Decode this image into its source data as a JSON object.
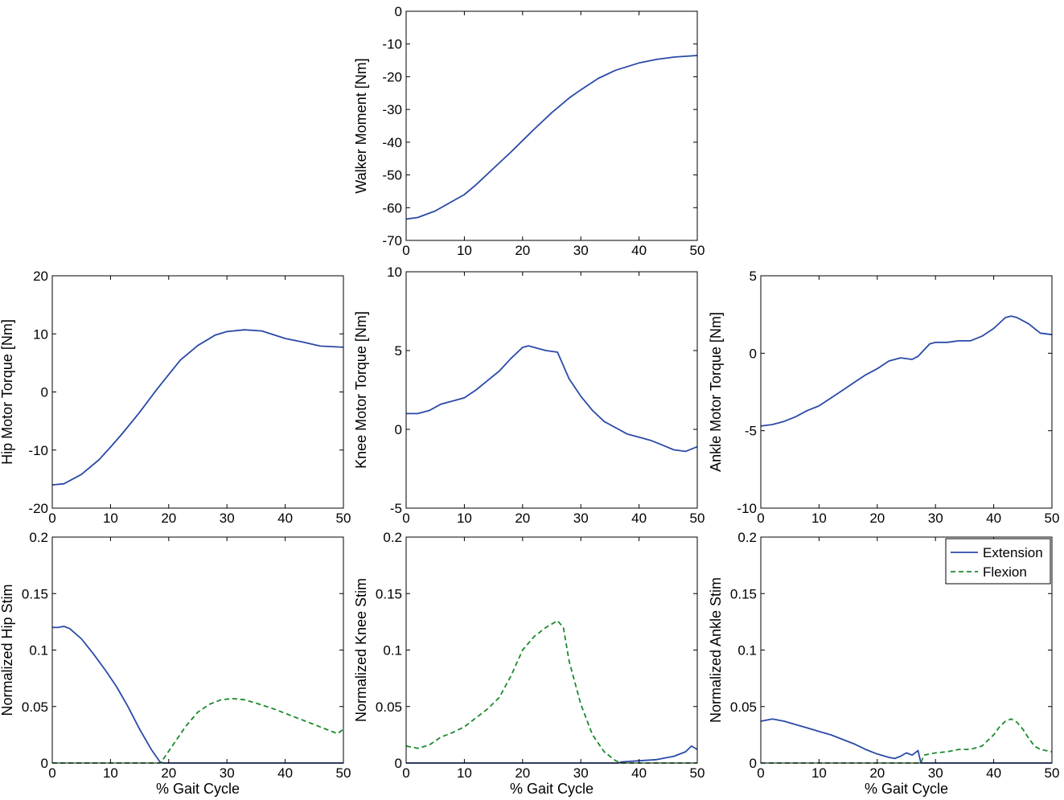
{
  "colors": {
    "extension": "#2a4aa8",
    "flexion": "#1a8a2a",
    "axis": "#000000"
  },
  "chart_data": [
    {
      "id": "walker",
      "type": "line",
      "ylabel": "Walker Moment [Nm]",
      "xlabel": "",
      "xlim": [
        0,
        50
      ],
      "ylim": [
        -70,
        0
      ],
      "xticks": [
        0,
        10,
        20,
        30,
        40,
        50
      ],
      "yticks": [
        -70,
        -60,
        -50,
        -40,
        -30,
        -20,
        -10,
        0
      ],
      "series": [
        {
          "style": "extension",
          "x": [
            0,
            2,
            5,
            8,
            10,
            12,
            15,
            18,
            20,
            22,
            25,
            28,
            30,
            33,
            36,
            40,
            43,
            46,
            50
          ],
          "y": [
            -63.5,
            -63,
            -61,
            -58,
            -56,
            -53,
            -48,
            -43,
            -39.5,
            -36,
            -31,
            -26.5,
            -24,
            -20.5,
            -18,
            -15.8,
            -14.7,
            -14,
            -13.5
          ]
        }
      ]
    },
    {
      "id": "hip-torque",
      "type": "line",
      "ylabel": "Hip Motor Torque [Nm]",
      "xlabel": "",
      "xlim": [
        0,
        50
      ],
      "ylim": [
        -20,
        20
      ],
      "xticks": [
        0,
        10,
        20,
        30,
        40,
        50
      ],
      "yticks": [
        -20,
        -10,
        0,
        10,
        20
      ],
      "series": [
        {
          "style": "extension",
          "x": [
            0,
            2,
            5,
            8,
            10,
            12,
            15,
            18,
            20,
            22,
            25,
            28,
            30,
            33,
            36,
            40,
            43,
            46,
            50
          ],
          "y": [
            -16,
            -15.8,
            -14.2,
            -11.7,
            -9.5,
            -7.2,
            -3.5,
            0.5,
            3,
            5.5,
            8,
            9.8,
            10.4,
            10.7,
            10.5,
            9.2,
            8.6,
            7.9,
            7.7
          ]
        }
      ]
    },
    {
      "id": "knee-torque",
      "type": "line",
      "ylabel": "Knee Motor Torque [Nm]",
      "xlabel": "",
      "xlim": [
        0,
        50
      ],
      "ylim": [
        -5,
        10
      ],
      "xticks": [
        0,
        10,
        20,
        30,
        40,
        50
      ],
      "yticks": [
        -5,
        0,
        5,
        10
      ],
      "series": [
        {
          "style": "extension",
          "x": [
            0,
            2,
            4,
            6,
            8,
            10,
            12,
            14,
            16,
            18,
            20,
            21,
            22,
            24,
            26,
            28,
            30,
            32,
            34,
            36,
            38,
            40,
            42,
            44,
            46,
            48,
            50
          ],
          "y": [
            1,
            1,
            1.2,
            1.6,
            1.8,
            2,
            2.5,
            3.1,
            3.7,
            4.5,
            5.2,
            5.3,
            5.2,
            5,
            4.9,
            3.2,
            2.1,
            1.2,
            0.5,
            0.1,
            -0.3,
            -0.5,
            -0.7,
            -1,
            -1.3,
            -1.4,
            -1.1
          ]
        }
      ]
    },
    {
      "id": "ankle-torque",
      "type": "line",
      "ylabel": "Ankle Motor Torque [Nm]",
      "xlabel": "",
      "xlim": [
        0,
        50
      ],
      "ylim": [
        -10,
        5
      ],
      "xticks": [
        0,
        10,
        20,
        30,
        40,
        50
      ],
      "yticks": [
        -10,
        -5,
        0,
        5
      ],
      "series": [
        {
          "style": "extension",
          "x": [
            0,
            2,
            4,
            6,
            8,
            10,
            12,
            14,
            16,
            18,
            20,
            22,
            24,
            26,
            27,
            28,
            29,
            30,
            32,
            34,
            36,
            38,
            40,
            42,
            43,
            44,
            46,
            48,
            50
          ],
          "y": [
            -4.7,
            -4.6,
            -4.4,
            -4.1,
            -3.7,
            -3.4,
            -2.9,
            -2.4,
            -1.9,
            -1.4,
            -1,
            -0.5,
            -0.3,
            -0.4,
            -0.2,
            0.2,
            0.6,
            0.7,
            0.7,
            0.8,
            0.8,
            1.1,
            1.6,
            2.3,
            2.4,
            2.3,
            1.9,
            1.3,
            1.2
          ]
        }
      ]
    },
    {
      "id": "hip-stim",
      "type": "line",
      "ylabel": "Normalized Hip Stim",
      "xlabel": "% Gait Cycle",
      "xlim": [
        0,
        50
      ],
      "ylim": [
        0,
        0.2
      ],
      "xticks": [
        0,
        10,
        20,
        30,
        40,
        50
      ],
      "yticks": [
        0,
        0.05,
        0.1,
        0.15,
        0.2
      ],
      "yticklabels": [
        "0",
        "0.05",
        "0.1",
        "0.15",
        "0.2"
      ],
      "series": [
        {
          "style": "extension",
          "x": [
            0,
            1,
            2,
            3,
            5,
            7,
            9,
            11,
            13,
            15,
            17,
            18.5,
            19,
            50
          ],
          "y": [
            0.12,
            0.12,
            0.121,
            0.119,
            0.11,
            0.097,
            0.083,
            0.068,
            0.05,
            0.03,
            0.012,
            0.001,
            0,
            0
          ]
        },
        {
          "style": "flexion",
          "x": [
            0,
            18.5,
            19,
            21,
            23,
            25,
            27,
            29,
            31,
            33,
            35,
            38,
            41,
            44,
            47,
            49,
            50
          ],
          "y": [
            0,
            0,
            0.003,
            0.018,
            0.033,
            0.045,
            0.052,
            0.056,
            0.057,
            0.056,
            0.053,
            0.048,
            0.042,
            0.036,
            0.03,
            0.026,
            0.03
          ]
        }
      ]
    },
    {
      "id": "knee-stim",
      "type": "line",
      "ylabel": "Normalized Knee Stim",
      "xlabel": "% Gait Cycle",
      "xlim": [
        0,
        50
      ],
      "ylim": [
        0,
        0.2
      ],
      "xticks": [
        0,
        10,
        20,
        30,
        40,
        50
      ],
      "yticks": [
        0,
        0.05,
        0.1,
        0.15,
        0.2
      ],
      "yticklabels": [
        "0",
        "0.05",
        "0.1",
        "0.15",
        "0.2"
      ],
      "series": [
        {
          "style": "extension",
          "x": [
            0,
            36.5,
            37,
            40,
            43,
            46,
            48,
            49,
            50
          ],
          "y": [
            0,
            0,
            0.001,
            0.002,
            0.003,
            0.006,
            0.01,
            0.015,
            0.012
          ]
        },
        {
          "style": "flexion",
          "x": [
            0,
            2,
            4,
            6,
            8,
            10,
            12,
            14,
            16,
            18,
            20,
            22,
            24,
            26,
            27,
            28,
            30,
            32,
            34,
            36,
            37,
            50
          ],
          "y": [
            0.015,
            0.013,
            0.016,
            0.023,
            0.027,
            0.032,
            0.04,
            0.048,
            0.058,
            0.077,
            0.1,
            0.112,
            0.12,
            0.126,
            0.12,
            0.09,
            0.052,
            0.025,
            0.01,
            0.002,
            0,
            0
          ]
        }
      ]
    },
    {
      "id": "ankle-stim",
      "type": "line",
      "ylabel": "Normalized Ankle Stim",
      "xlabel": "% Gait Cycle",
      "xlim": [
        0,
        50
      ],
      "ylim": [
        0,
        0.2
      ],
      "xticks": [
        0,
        10,
        20,
        30,
        40,
        50
      ],
      "yticks": [
        0,
        0.05,
        0.1,
        0.15,
        0.2
      ],
      "yticklabels": [
        "0",
        "0.05",
        "0.1",
        "0.15",
        "0.2"
      ],
      "legend": {
        "placement": "top-right",
        "entries": [
          {
            "label": "Extension",
            "style": "extension"
          },
          {
            "label": "Flexion",
            "style": "flexion"
          }
        ]
      },
      "series": [
        {
          "style": "extension",
          "x": [
            0,
            1,
            2,
            4,
            6,
            8,
            10,
            12,
            14,
            16,
            18,
            20,
            22,
            23,
            24,
            25,
            26,
            27,
            27.5,
            50
          ],
          "y": [
            0.037,
            0.038,
            0.039,
            0.037,
            0.034,
            0.031,
            0.028,
            0.025,
            0.021,
            0.017,
            0.012,
            0.008,
            0.005,
            0.004,
            0.006,
            0.009,
            0.007,
            0.011,
            0,
            0
          ]
        },
        {
          "style": "flexion",
          "x": [
            0,
            27.5,
            28,
            30,
            32,
            34,
            36,
            38,
            40,
            41,
            42,
            43,
            44,
            45,
            46,
            47,
            48,
            50
          ],
          "y": [
            0,
            0,
            0.007,
            0.009,
            0.01,
            0.012,
            0.012,
            0.015,
            0.025,
            0.032,
            0.037,
            0.039,
            0.036,
            0.03,
            0.022,
            0.015,
            0.012,
            0.01
          ]
        }
      ]
    }
  ]
}
